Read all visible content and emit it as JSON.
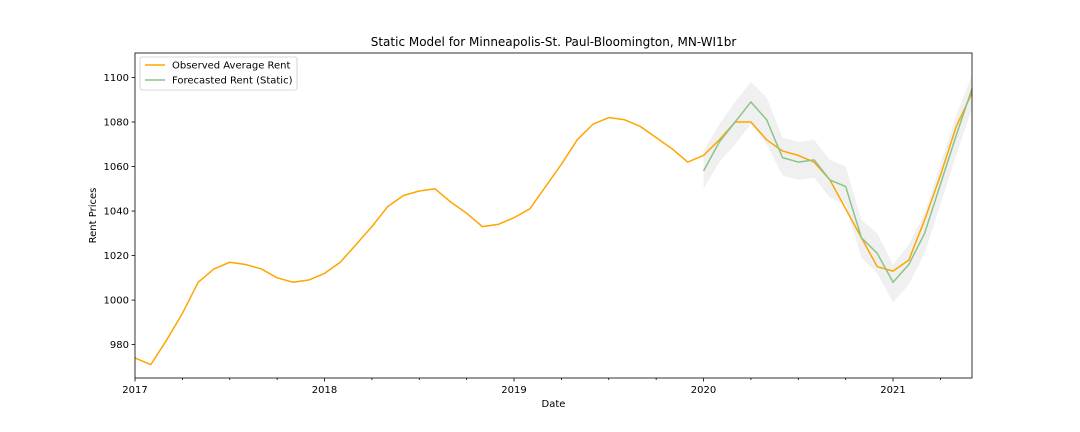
{
  "chart_data": {
    "type": "line",
    "title": "Static Model for Minneapolis-St. Paul-Bloomington, MN-WI1br",
    "xlabel": "Date",
    "ylabel": "Rent Prices",
    "xlim": [
      "2017-01",
      "2021-06"
    ],
    "ylim": [
      965,
      1111
    ],
    "x_ticks": [
      {
        "date": "2017-01",
        "label": "2017"
      },
      {
        "date": "2018-01",
        "label": "2018"
      },
      {
        "date": "2019-01",
        "label": "2019"
      },
      {
        "date": "2020-01",
        "label": "2020"
      },
      {
        "date": "2021-01",
        "label": "2021"
      }
    ],
    "y_ticks": [
      980,
      1000,
      1020,
      1040,
      1060,
      1080,
      1100
    ],
    "grid": false,
    "legend_position": "top-left",
    "series": [
      {
        "name": "Observed Average Rent",
        "color": "#FFA500",
        "x": [
          "2017-01",
          "2017-02",
          "2017-03",
          "2017-04",
          "2017-05",
          "2017-06",
          "2017-07",
          "2017-08",
          "2017-09",
          "2017-10",
          "2017-11",
          "2017-12",
          "2018-01",
          "2018-02",
          "2018-03",
          "2018-04",
          "2018-05",
          "2018-06",
          "2018-07",
          "2018-08",
          "2018-09",
          "2018-10",
          "2018-11",
          "2018-12",
          "2019-01",
          "2019-02",
          "2019-03",
          "2019-04",
          "2019-05",
          "2019-06",
          "2019-07",
          "2019-08",
          "2019-09",
          "2019-10",
          "2019-11",
          "2019-12",
          "2020-01",
          "2020-02",
          "2020-03",
          "2020-04",
          "2020-05",
          "2020-06",
          "2020-07",
          "2020-08",
          "2020-09",
          "2020-10",
          "2020-11",
          "2020-12",
          "2021-01",
          "2021-02",
          "2021-03",
          "2021-04",
          "2021-05",
          "2021-06"
        ],
        "values": [
          974,
          971,
          982,
          994,
          1008,
          1014,
          1017,
          1016,
          1014,
          1010,
          1008,
          1009,
          1012,
          1017,
          1025,
          1033,
          1042,
          1047,
          1049,
          1050,
          1044,
          1039,
          1033,
          1034,
          1037,
          1041,
          1051,
          1061,
          1072,
          1079,
          1082,
          1081,
          1078,
          1073,
          1068,
          1062,
          1065,
          1072,
          1080,
          1080,
          1072,
          1067,
          1065,
          1062,
          1054,
          1041,
          1028,
          1015,
          1013,
          1018,
          1036,
          1056,
          1078,
          1093
        ]
      },
      {
        "name": "Forecasted Rent (Static)",
        "color": "#8BC48A",
        "x": [
          "2020-01",
          "2020-02",
          "2020-03",
          "2020-04",
          "2020-05",
          "2020-06",
          "2020-07",
          "2020-08",
          "2020-09",
          "2020-10",
          "2020-11",
          "2020-12",
          "2021-01",
          "2021-02",
          "2021-03",
          "2021-04",
          "2021-05",
          "2021-06"
        ],
        "values": [
          1058,
          1071,
          1080,
          1089,
          1081,
          1064,
          1062,
          1063,
          1054,
          1051,
          1028,
          1021,
          1008,
          1016,
          1030,
          1052,
          1074,
          1095
        ],
        "lower": [
          1050,
          1062,
          1070,
          1079,
          1070,
          1056,
          1054,
          1055,
          1046,
          1043,
          1019,
          1012,
          999,
          1007,
          1021,
          1043,
          1065,
          1086
        ],
        "upper": [
          1067,
          1079,
          1089,
          1098,
          1091,
          1073,
          1071,
          1072,
          1063,
          1060,
          1036,
          1030,
          1016,
          1025,
          1039,
          1061,
          1083,
          1101
        ]
      }
    ]
  }
}
